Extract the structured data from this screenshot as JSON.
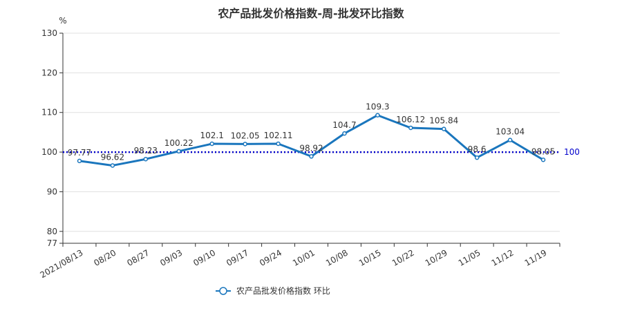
{
  "chart_data": {
    "type": "line",
    "title": "农产品批发价格指数-周-批发环比指数",
    "y_unit": "%",
    "ylim": [
      77,
      130
    ],
    "y_ticks": [
      77,
      80,
      90,
      100,
      110,
      120,
      130
    ],
    "grid": true,
    "categories": [
      "2021/08/13",
      "08/20",
      "08/27",
      "09/03",
      "09/10",
      "09/17",
      "09/24",
      "10/01",
      "10/08",
      "10/15",
      "10/22",
      "10/29",
      "11/05",
      "11/12",
      "11/19"
    ],
    "series": [
      {
        "name": "农产品批发价格指数  环比",
        "values": [
          97.77,
          96.62,
          98.23,
          100.22,
          102.1,
          102.05,
          102.11,
          98.92,
          104.7,
          109.3,
          106.12,
          105.84,
          98.6,
          103.04,
          98.05
        ],
        "labels": [
          "97.77",
          "96.62",
          "98.23",
          "100.22",
          "102.1",
          "102.05",
          "102.11",
          "98.92",
          "104.7",
          "109.3",
          "106.12",
          "105.84",
          "98.6",
          "103.04",
          "98.05"
        ]
      }
    ],
    "reference_line": {
      "value": 100,
      "label": "100"
    },
    "legend_position": "bottom-center",
    "colors": {
      "series": "#1a76bd",
      "reference": "#0000cc",
      "grid": "#e0e0e0",
      "axis": "#333333",
      "text": "#333333"
    }
  }
}
